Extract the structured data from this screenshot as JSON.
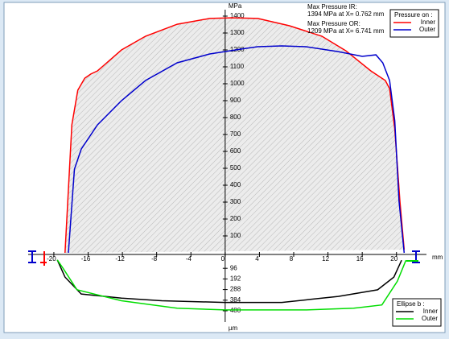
{
  "chart_data": [
    {
      "type": "line",
      "y_label": "MPa",
      "x_label": "mm",
      "annotations": [
        "Max Pressure IR:",
        "1394 MPa at X= 0.762 mm",
        "Max Pressure OR:",
        "1209 MPa at X= 6.741 mm"
      ],
      "legend_title": "Pressure on :",
      "xlim": [
        -23,
        23.5
      ],
      "xticks": [
        -20,
        -16,
        -12,
        -8,
        -4,
        0,
        4,
        8,
        12,
        16,
        20
      ],
      "ylim": [
        0,
        1400
      ],
      "yticks": [
        100,
        200,
        300,
        400,
        500,
        600,
        700,
        800,
        900,
        1000,
        1100,
        1200,
        1300,
        1400
      ],
      "series": [
        {
          "name": "Inner",
          "color": "#ff0000",
          "x": [
            -18.7,
            -17.9,
            -17.2,
            -16.4,
            -15.7,
            -14.9,
            -12.1,
            -9.3,
            -5.6,
            -1.8,
            0.8,
            3.8,
            7.5,
            11.3,
            14.1,
            17.0,
            18.7,
            19.2,
            19.8,
            20.4,
            20.9
          ],
          "values": [
            0,
            757,
            962,
            1033,
            1057,
            1076,
            1200,
            1281,
            1352,
            1386,
            1390,
            1386,
            1343,
            1281,
            1195,
            1076,
            1019,
            971,
            733,
            305,
            19
          ]
        },
        {
          "name": "Outer",
          "color": "#0000cc",
          "x": [
            -18.3,
            -17.6,
            -16.8,
            -14.9,
            -12.1,
            -9.3,
            -5.6,
            -1.8,
            1.9,
            3.8,
            6.6,
            9.4,
            13.2,
            16.0,
            17.6,
            18.4,
            19.2,
            19.8,
            20.3,
            20.9
          ],
          "values": [
            0,
            495,
            614,
            757,
            900,
            1019,
            1124,
            1176,
            1205,
            1219,
            1224,
            1219,
            1190,
            1162,
            1171,
            1124,
            1019,
            781,
            305,
            0
          ]
        }
      ]
    },
    {
      "type": "line",
      "y_label": "µm",
      "legend_title": "Ellipse b :",
      "xlim": [
        -23,
        23.5
      ],
      "ylim": [
        0,
        480
      ],
      "yticks": [
        96,
        192,
        288,
        384,
        480
      ],
      "series": [
        {
          "name": "Inner",
          "color": "#000000",
          "x": [
            -19.6,
            -18.7,
            -16.8,
            -12.1,
            -7.4,
            0,
            6.6,
            13.2,
            17.8,
            19.7,
            20.6
          ],
          "values": [
            20,
            175,
            328,
            366,
            389,
            404,
            404,
            350,
            290,
            175,
            23
          ]
        },
        {
          "name": "Outer",
          "color": "#00dd00",
          "x": [
            -19.6,
            -18.9,
            -17.3,
            -12.1,
            -5.6,
            0,
            9.4,
            15.0,
            18.3,
            20.1,
            21.1
          ],
          "values": [
            20,
            99,
            290,
            389,
            457,
            472,
            472,
            457,
            427,
            213,
            23
          ]
        }
      ]
    }
  ]
}
